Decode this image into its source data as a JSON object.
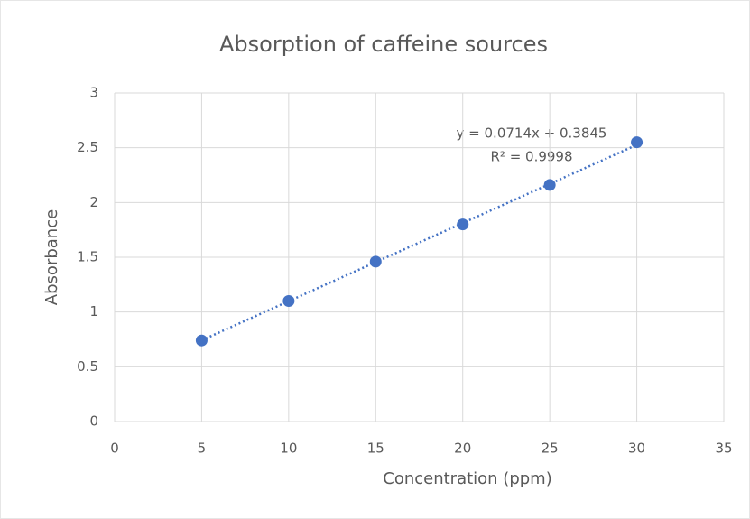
{
  "chart_data": {
    "type": "scatter",
    "title": "Absorption of caffeine sources",
    "x_label": "Concentration (ppm)",
    "y_label": "Absorbance",
    "series": [
      {
        "name": "Absorbance",
        "color": "#4472c4",
        "x": [
          5,
          10,
          15,
          20,
          25,
          30
        ],
        "values": [
          0.74,
          1.1,
          1.46,
          1.8,
          2.16,
          2.55
        ]
      }
    ],
    "trendline": {
      "color": "#4472c4",
      "x": [
        5,
        30
      ],
      "values": [
        0.7415,
        2.5265
      ]
    },
    "annotations": [
      "y = 0.0714x + 0.3845",
      "R² = 0.9998"
    ],
    "xlim": [
      0,
      35
    ],
    "xticks": [
      0,
      5,
      10,
      15,
      20,
      25,
      30,
      35
    ],
    "ylim": [
      0,
      3
    ],
    "yticks": [
      0,
      {
        "value": 0.5,
        "label": "0.5"
      },
      1,
      1.5,
      2,
      2.5,
      3
    ],
    "grid": true
  }
}
